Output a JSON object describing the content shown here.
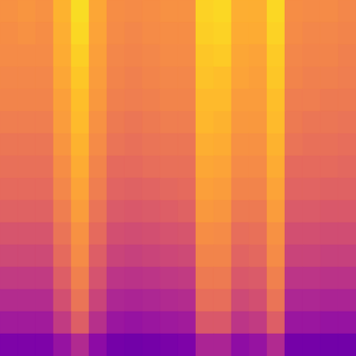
{
  "chart_data": {
    "type": "heatmap",
    "color": "plasma",
    "tick_labels": false,
    "zlim": [
      0,
      1
    ],
    "cells": [
      [
        0.74,
        0.75,
        0.74,
        0.83,
        0.93,
        0.8,
        0.73,
        0.72,
        0.73,
        0.74,
        0.74,
        0.91,
        0.92,
        0.82,
        0.82,
        0.92,
        0.73,
        0.72,
        0.72,
        0.71
      ],
      [
        0.73,
        0.74,
        0.73,
        0.82,
        0.92,
        0.79,
        0.72,
        0.71,
        0.72,
        0.73,
        0.73,
        0.9,
        0.91,
        0.81,
        0.81,
        0.91,
        0.72,
        0.71,
        0.71,
        0.7
      ],
      [
        0.72,
        0.72,
        0.72,
        0.81,
        0.9,
        0.78,
        0.71,
        0.7,
        0.71,
        0.72,
        0.72,
        0.88,
        0.89,
        0.8,
        0.79,
        0.89,
        0.71,
        0.7,
        0.7,
        0.69
      ],
      [
        0.71,
        0.71,
        0.71,
        0.8,
        0.88,
        0.77,
        0.7,
        0.69,
        0.7,
        0.71,
        0.71,
        0.87,
        0.86,
        0.79,
        0.78,
        0.88,
        0.7,
        0.69,
        0.69,
        0.68
      ],
      [
        0.7,
        0.7,
        0.7,
        0.78,
        0.86,
        0.76,
        0.69,
        0.68,
        0.69,
        0.7,
        0.7,
        0.85,
        0.85,
        0.77,
        0.77,
        0.86,
        0.68,
        0.68,
        0.67,
        0.67
      ],
      [
        0.68,
        0.68,
        0.68,
        0.77,
        0.85,
        0.74,
        0.67,
        0.66,
        0.67,
        0.68,
        0.68,
        0.84,
        0.83,
        0.76,
        0.76,
        0.85,
        0.67,
        0.66,
        0.66,
        0.65
      ],
      [
        0.66,
        0.66,
        0.66,
        0.75,
        0.83,
        0.72,
        0.65,
        0.64,
        0.65,
        0.66,
        0.66,
        0.82,
        0.81,
        0.74,
        0.74,
        0.83,
        0.65,
        0.64,
        0.64,
        0.63
      ],
      [
        0.64,
        0.64,
        0.64,
        0.73,
        0.81,
        0.7,
        0.62,
        0.62,
        0.63,
        0.64,
        0.64,
        0.8,
        0.79,
        0.72,
        0.72,
        0.81,
        0.62,
        0.62,
        0.62,
        0.61
      ],
      [
        0.62,
        0.62,
        0.62,
        0.71,
        0.79,
        0.68,
        0.6,
        0.59,
        0.6,
        0.61,
        0.62,
        0.78,
        0.77,
        0.7,
        0.7,
        0.79,
        0.6,
        0.6,
        0.59,
        0.59
      ],
      [
        0.59,
        0.59,
        0.59,
        0.68,
        0.77,
        0.65,
        0.57,
        0.56,
        0.57,
        0.58,
        0.59,
        0.76,
        0.75,
        0.67,
        0.67,
        0.77,
        0.57,
        0.57,
        0.56,
        0.56
      ],
      [
        0.55,
        0.55,
        0.55,
        0.65,
        0.74,
        0.62,
        0.53,
        0.52,
        0.53,
        0.54,
        0.55,
        0.73,
        0.72,
        0.63,
        0.64,
        0.74,
        0.53,
        0.53,
        0.52,
        0.52
      ],
      [
        0.51,
        0.51,
        0.51,
        0.62,
        0.72,
        0.58,
        0.49,
        0.48,
        0.49,
        0.5,
        0.51,
        0.7,
        0.7,
        0.6,
        0.61,
        0.72,
        0.49,
        0.49,
        0.48,
        0.48
      ],
      [
        0.46,
        0.46,
        0.46,
        0.58,
        0.69,
        0.54,
        0.44,
        0.43,
        0.44,
        0.45,
        0.46,
        0.67,
        0.67,
        0.56,
        0.57,
        0.69,
        0.44,
        0.44,
        0.43,
        0.43
      ],
      [
        0.41,
        0.41,
        0.41,
        0.53,
        0.65,
        0.49,
        0.39,
        0.38,
        0.39,
        0.4,
        0.41,
        0.63,
        0.63,
        0.51,
        0.53,
        0.65,
        0.39,
        0.39,
        0.38,
        0.38
      ],
      [
        0.35,
        0.35,
        0.35,
        0.46,
        0.58,
        0.42,
        0.33,
        0.32,
        0.33,
        0.34,
        0.35,
        0.56,
        0.56,
        0.44,
        0.46,
        0.58,
        0.33,
        0.33,
        0.32,
        0.32
      ],
      [
        0.25,
        0.25,
        0.25,
        0.32,
        0.4,
        0.29,
        0.23,
        0.22,
        0.23,
        0.24,
        0.25,
        0.38,
        0.38,
        0.3,
        0.32,
        0.4,
        0.23,
        0.23,
        0.22,
        0.22
      ]
    ]
  }
}
